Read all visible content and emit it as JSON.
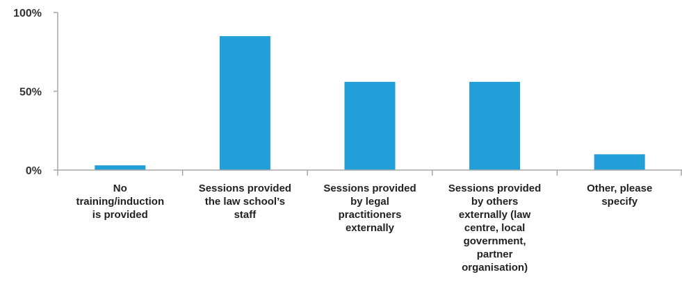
{
  "chart_data": {
    "type": "bar",
    "categories": [
      "No training/induction is provided",
      "Sessions provided the law school’s staff",
      "Sessions provided by legal practitioners externally",
      "Sessions provided by others externally (law centre, local government, partner organisation)",
      "Other, please specify"
    ],
    "category_lines": [
      [
        "No",
        "training/induction",
        "is provided"
      ],
      [
        "Sessions provided",
        "the law school’s",
        "staff"
      ],
      [
        "Sessions provided",
        "by legal",
        "practitioners",
        "externally"
      ],
      [
        "Sessions provided",
        "by others",
        "externally (law",
        "centre, local",
        "government,",
        "partner",
        "organisation)"
      ],
      [
        "Other, please",
        "specify"
      ]
    ],
    "values": [
      3,
      85,
      56,
      56,
      10
    ],
    "ylim": [
      0,
      100
    ],
    "yticks": [
      0,
      50,
      100
    ],
    "ytick_labels": [
      "0%",
      "50%",
      "100%"
    ],
    "grid": false,
    "bar_color": "#229fd9",
    "axis_color": "#a6a6a6"
  }
}
